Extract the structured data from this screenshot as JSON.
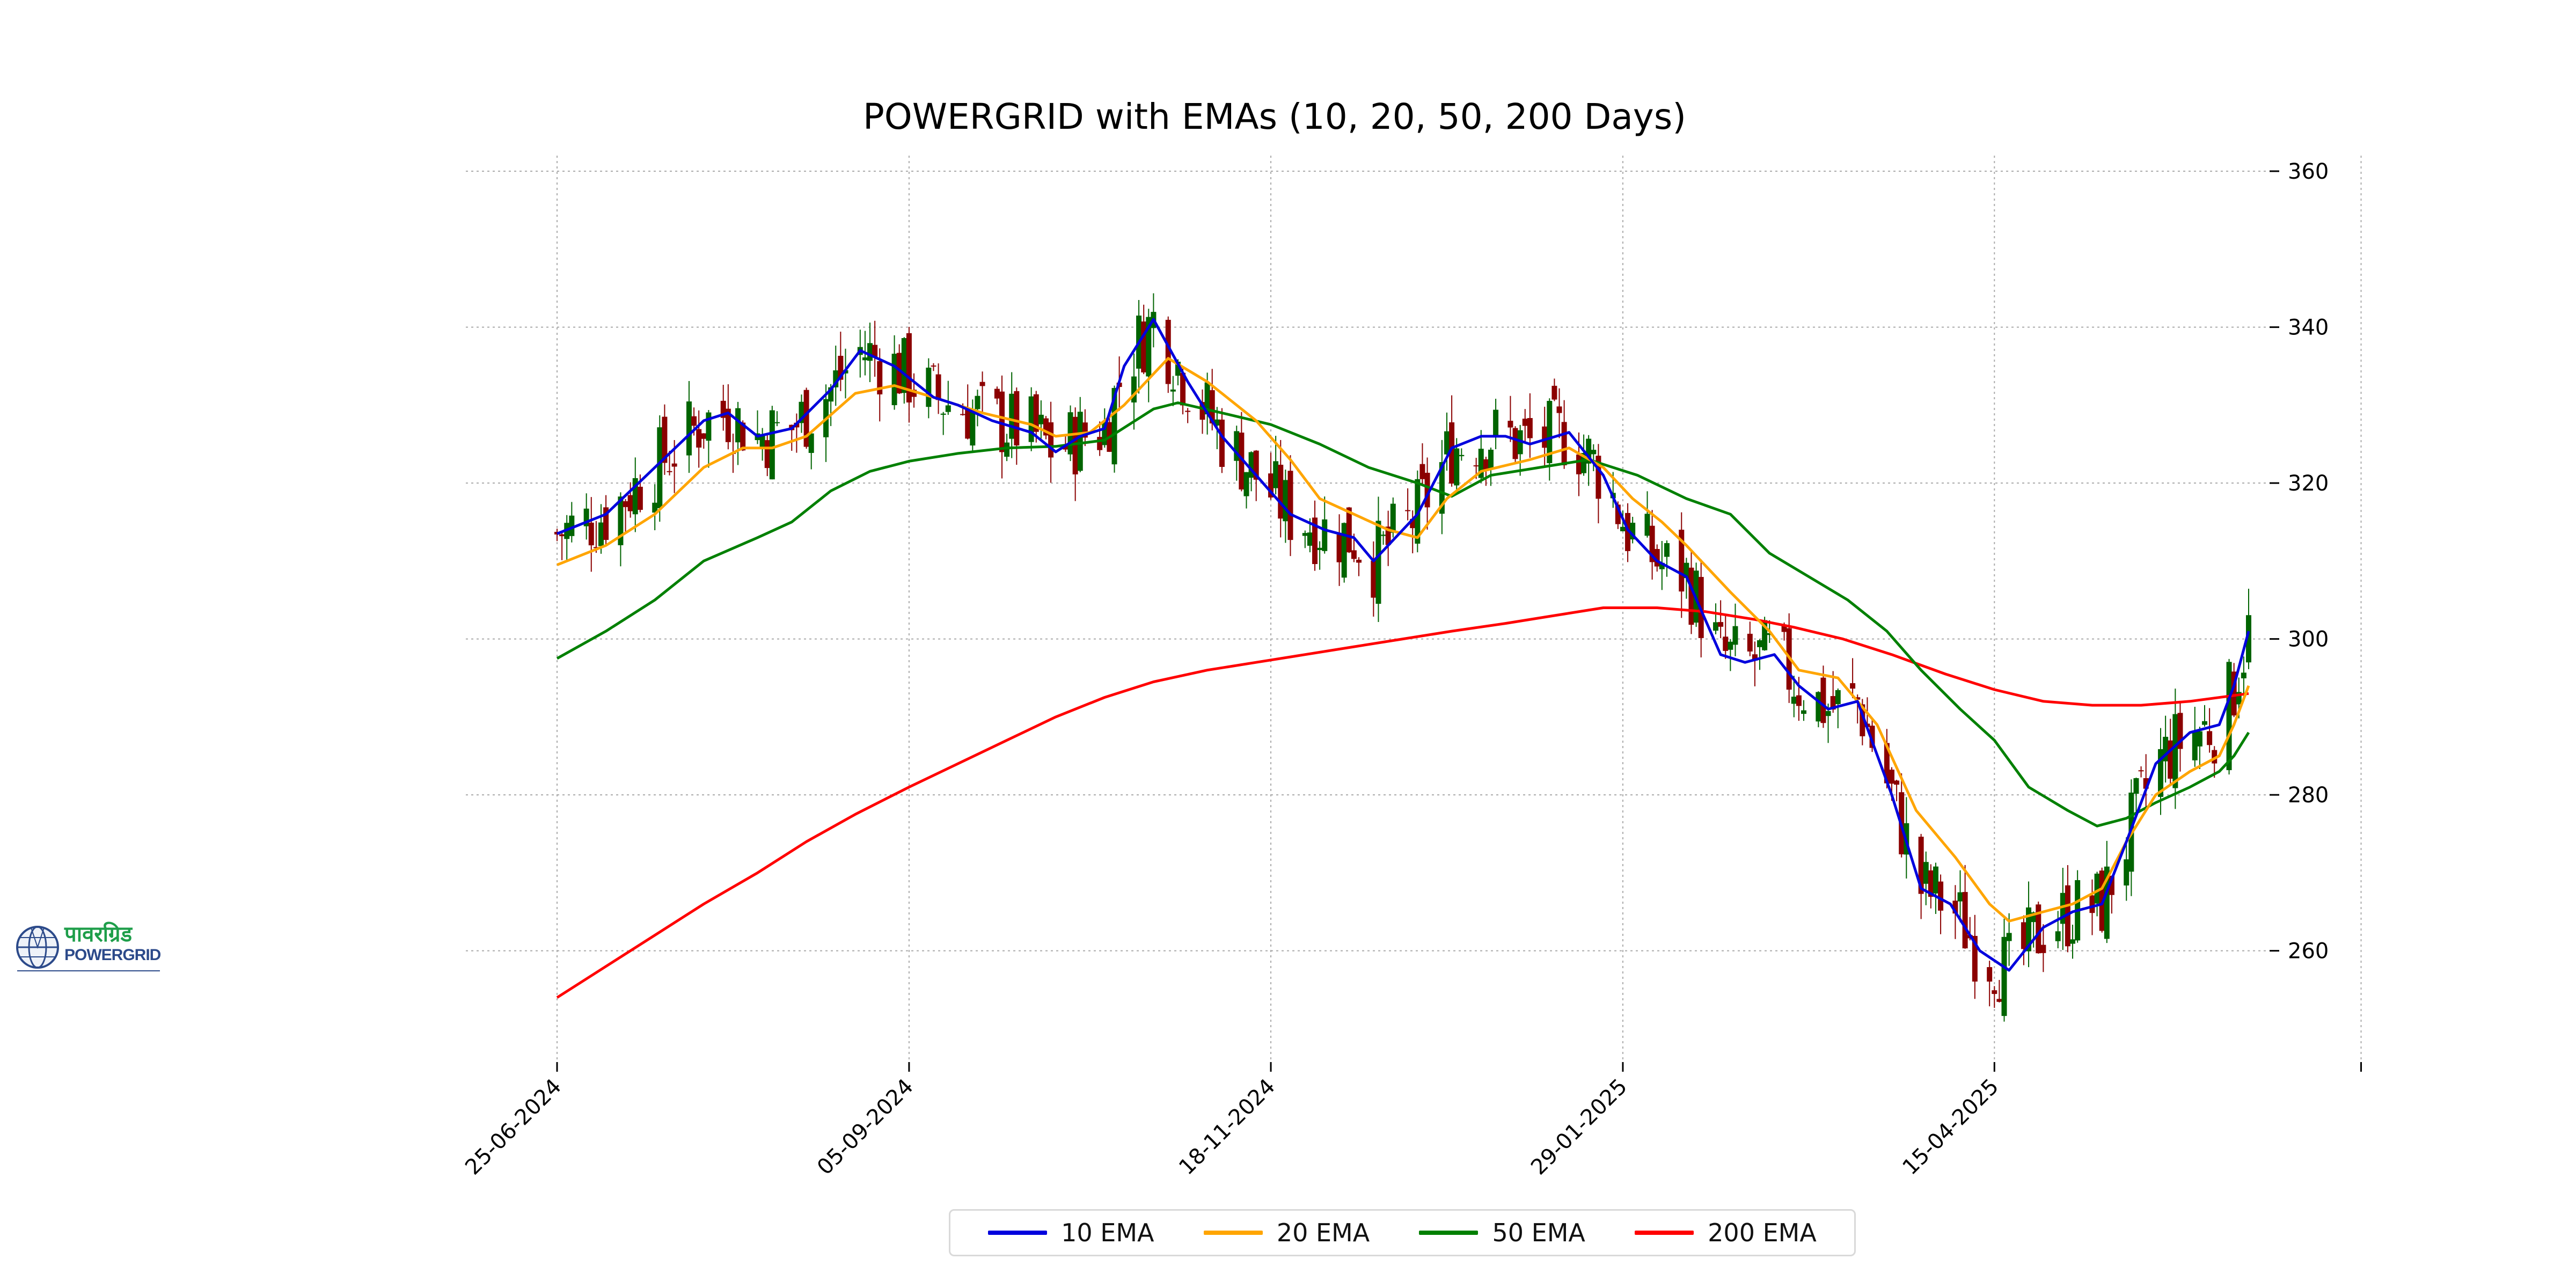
{
  "chart_data": {
    "type": "line",
    "subtype": "candlestick-with-ema-overlays",
    "title": "POWERGRID with EMAs (10, 20, 50, 200 Days)",
    "x_axis": {
      "type": "date",
      "range": [
        "2024-06-25",
        "2025-06-06"
      ],
      "tick_labels": [
        "25-06-2024",
        "05-09-2024",
        "18-11-2024",
        "29-01-2025",
        "15-04-2025"
      ]
    },
    "y_axis": {
      "position": "right",
      "range": [
        246,
        362
      ],
      "ticks": [
        260,
        280,
        300,
        320,
        340,
        360
      ]
    },
    "grid": true,
    "legend_position": "bottom-center",
    "colors": {
      "up": "#006400",
      "down": "#8b0000"
    },
    "series": [
      {
        "name": "10 EMA",
        "color": "#0000dd",
        "points": [
          [
            "2024-06-25",
            313.5
          ],
          [
            "2024-07-05",
            316
          ],
          [
            "2024-07-15",
            322
          ],
          [
            "2024-07-25",
            328
          ],
          [
            "2024-07-30",
            329
          ],
          [
            "2024-08-05",
            326
          ],
          [
            "2024-08-12",
            327
          ],
          [
            "2024-08-20",
            332
          ],
          [
            "2024-08-26",
            337
          ],
          [
            "2024-09-02",
            335
          ],
          [
            "2024-09-06",
            333
          ],
          [
            "2024-09-10",
            331
          ],
          [
            "2024-09-15",
            330
          ],
          [
            "2024-09-22",
            328
          ],
          [
            "2024-09-30",
            326.5
          ],
          [
            "2024-10-05",
            324
          ],
          [
            "2024-10-10",
            326
          ],
          [
            "2024-10-15",
            327
          ],
          [
            "2024-10-19",
            335
          ],
          [
            "2024-10-25",
            341
          ],
          [
            "2024-11-01",
            333
          ],
          [
            "2024-11-08",
            326
          ],
          [
            "2024-11-15",
            321
          ],
          [
            "2024-11-22",
            316
          ],
          [
            "2024-11-29",
            314
          ],
          [
            "2024-12-05",
            313
          ],
          [
            "2024-12-09",
            310
          ],
          [
            "2024-12-18",
            316
          ],
          [
            "2024-12-25",
            324.5
          ],
          [
            "2024-12-31",
            326
          ],
          [
            "2025-01-05",
            326
          ],
          [
            "2025-01-10",
            325
          ],
          [
            "2025-01-18",
            326.5
          ],
          [
            "2025-01-25",
            321
          ],
          [
            "2025-01-30",
            314
          ],
          [
            "2025-02-05",
            310
          ],
          [
            "2025-02-11",
            308
          ],
          [
            "2025-02-18",
            298
          ],
          [
            "2025-02-23",
            297
          ],
          [
            "2025-03-01",
            298
          ],
          [
            "2025-03-06",
            294
          ],
          [
            "2025-03-12",
            291
          ],
          [
            "2025-03-18",
            292
          ],
          [
            "2025-03-25",
            280
          ],
          [
            "2025-03-31",
            268
          ],
          [
            "2025-04-06",
            266
          ],
          [
            "2025-04-12",
            260
          ],
          [
            "2025-04-18",
            257.5
          ],
          [
            "2025-04-25",
            263
          ],
          [
            "2025-05-01",
            265
          ],
          [
            "2025-05-07",
            266
          ],
          [
            "2025-05-12",
            274
          ],
          [
            "2025-05-18",
            284
          ],
          [
            "2025-05-25",
            288
          ],
          [
            "2025-05-31",
            289
          ],
          [
            "2025-06-03",
            294
          ],
          [
            "2025-06-06",
            301
          ]
        ]
      },
      {
        "name": "20 EMA",
        "color": "#ffa500",
        "points": [
          [
            "2024-06-25",
            309.5
          ],
          [
            "2024-07-05",
            312
          ],
          [
            "2024-07-15",
            316
          ],
          [
            "2024-07-25",
            322
          ],
          [
            "2024-08-02",
            324.5
          ],
          [
            "2024-08-08",
            324.5
          ],
          [
            "2024-08-15",
            326
          ],
          [
            "2024-08-25",
            331.5
          ],
          [
            "2024-09-02",
            332.5
          ],
          [
            "2024-09-10",
            331
          ],
          [
            "2024-09-20",
            329
          ],
          [
            "2024-09-30",
            327.5
          ],
          [
            "2024-10-05",
            326
          ],
          [
            "2024-10-12",
            326.5
          ],
          [
            "2024-10-19",
            330
          ],
          [
            "2024-10-25",
            334
          ],
          [
            "2024-10-28",
            336
          ],
          [
            "2024-11-05",
            333
          ],
          [
            "2024-11-15",
            328
          ],
          [
            "2024-11-22",
            323
          ],
          [
            "2024-11-28",
            318
          ],
          [
            "2024-12-05",
            316
          ],
          [
            "2024-12-12",
            314
          ],
          [
            "2024-12-18",
            313
          ],
          [
            "2024-12-24",
            318
          ],
          [
            "2024-12-31",
            321.5
          ],
          [
            "2025-01-10",
            323
          ],
          [
            "2025-01-18",
            324.5
          ],
          [
            "2025-01-25",
            322
          ],
          [
            "2025-01-31",
            318
          ],
          [
            "2025-02-06",
            315
          ],
          [
            "2025-02-11",
            312
          ],
          [
            "2025-02-20",
            306
          ],
          [
            "2025-02-28",
            301
          ],
          [
            "2025-03-06",
            296
          ],
          [
            "2025-03-14",
            295
          ],
          [
            "2025-03-22",
            289
          ],
          [
            "2025-03-30",
            278
          ],
          [
            "2025-04-07",
            272
          ],
          [
            "2025-04-14",
            266
          ],
          [
            "2025-04-18",
            263.8
          ],
          [
            "2025-04-25",
            265
          ],
          [
            "2025-05-01",
            266
          ],
          [
            "2025-05-07",
            268
          ],
          [
            "2025-05-12",
            274
          ],
          [
            "2025-05-18",
            280
          ],
          [
            "2025-05-25",
            283
          ],
          [
            "2025-05-31",
            285
          ],
          [
            "2025-06-03",
            289
          ],
          [
            "2025-06-06",
            294
          ]
        ]
      },
      {
        "name": "50 EMA",
        "color": "#008000",
        "points": [
          [
            "2024-06-25",
            297.5
          ],
          [
            "2024-07-05",
            301
          ],
          [
            "2024-07-15",
            305
          ],
          [
            "2024-07-25",
            310
          ],
          [
            "2024-08-05",
            313
          ],
          [
            "2024-08-12",
            315
          ],
          [
            "2024-08-20",
            319
          ],
          [
            "2024-08-28",
            321.5
          ],
          [
            "2024-09-05",
            322.8
          ],
          [
            "2024-09-15",
            323.8
          ],
          [
            "2024-09-25",
            324.5
          ],
          [
            "2024-10-05",
            324.7
          ],
          [
            "2024-10-15",
            325.5
          ],
          [
            "2024-10-25",
            329.5
          ],
          [
            "2024-10-30",
            330.3
          ],
          [
            "2024-11-08",
            329
          ],
          [
            "2024-11-18",
            327.5
          ],
          [
            "2024-11-28",
            325
          ],
          [
            "2024-12-08",
            322
          ],
          [
            "2024-12-18",
            320
          ],
          [
            "2024-12-25",
            318.3
          ],
          [
            "2025-01-02",
            321
          ],
          [
            "2025-01-12",
            322
          ],
          [
            "2025-01-22",
            323
          ],
          [
            "2025-02-01",
            321
          ],
          [
            "2025-02-11",
            318
          ],
          [
            "2025-02-20",
            316
          ],
          [
            "2025-02-28",
            311
          ],
          [
            "2025-03-08",
            308
          ],
          [
            "2025-03-16",
            305
          ],
          [
            "2025-03-24",
            301
          ],
          [
            "2025-03-31",
            296
          ],
          [
            "2025-04-08",
            291
          ],
          [
            "2025-04-15",
            287
          ],
          [
            "2025-04-22",
            281
          ],
          [
            "2025-04-30",
            278
          ],
          [
            "2025-05-06",
            276
          ],
          [
            "2025-05-12",
            277
          ],
          [
            "2025-05-18",
            279
          ],
          [
            "2025-05-25",
            281
          ],
          [
            "2025-05-31",
            283
          ],
          [
            "2025-06-03",
            285
          ],
          [
            "2025-06-06",
            288
          ]
        ]
      },
      {
        "name": "200 EMA",
        "color": "#ff0000",
        "points": [
          [
            "2024-06-25",
            254
          ],
          [
            "2024-07-05",
            258
          ],
          [
            "2024-07-15",
            262
          ],
          [
            "2024-07-25",
            266
          ],
          [
            "2024-08-05",
            270
          ],
          [
            "2024-08-15",
            274
          ],
          [
            "2024-08-25",
            277.5
          ],
          [
            "2024-09-05",
            281
          ],
          [
            "2024-09-15",
            284
          ],
          [
            "2024-09-25",
            287
          ],
          [
            "2024-10-05",
            290
          ],
          [
            "2024-10-15",
            292.5
          ],
          [
            "2024-10-25",
            294.5
          ],
          [
            "2024-11-05",
            296
          ],
          [
            "2024-11-15",
            297
          ],
          [
            "2024-11-25",
            298
          ],
          [
            "2024-12-05",
            299
          ],
          [
            "2024-12-15",
            300
          ],
          [
            "2024-12-25",
            301
          ],
          [
            "2025-01-05",
            302
          ],
          [
            "2025-01-15",
            303
          ],
          [
            "2025-01-25",
            304
          ],
          [
            "2025-02-05",
            304
          ],
          [
            "2025-02-15",
            303.5
          ],
          [
            "2025-02-25",
            302.5
          ],
          [
            "2025-03-05",
            301.5
          ],
          [
            "2025-03-15",
            300
          ],
          [
            "2025-03-25",
            298
          ],
          [
            "2025-04-05",
            295.5
          ],
          [
            "2025-04-15",
            293.5
          ],
          [
            "2025-04-25",
            292
          ],
          [
            "2025-05-05",
            291.5
          ],
          [
            "2025-05-15",
            291.5
          ],
          [
            "2025-05-25",
            292
          ],
          [
            "2025-06-06",
            293
          ]
        ]
      }
    ]
  },
  "legend": {
    "items": [
      {
        "label": "10 EMA",
        "color": "#0000dd"
      },
      {
        "label": "20 EMA",
        "color": "#ffa500"
      },
      {
        "label": "50 EMA",
        "color": "#008000"
      },
      {
        "label": "200 EMA",
        "color": "#ff0000"
      }
    ]
  },
  "logo": {
    "hindi_text": "पावरग्रिड",
    "text": "POWERGRID"
  }
}
